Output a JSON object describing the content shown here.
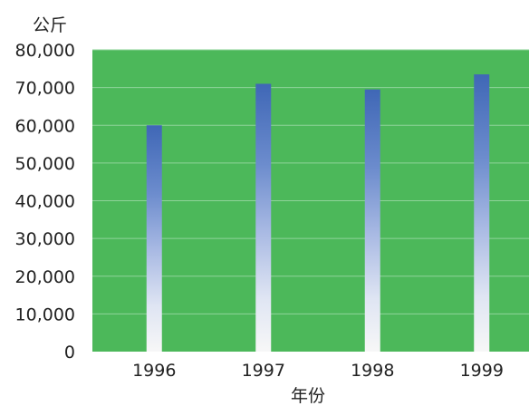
{
  "chart_data": {
    "type": "bar",
    "title": "",
    "xlabel": "年份",
    "ylabel": "公斤",
    "categories": [
      "1996",
      "1997",
      "1998",
      "1999"
    ],
    "values": [
      60000,
      71000,
      69500,
      73500
    ],
    "ylim": [
      0,
      80000
    ],
    "ytick_labels": [
      "0",
      "10,000",
      "20,000",
      "30,000",
      "40,000",
      "50,000",
      "60,000",
      "70,000",
      "80,000"
    ],
    "ytick_values": [
      0,
      10000,
      20000,
      30000,
      40000,
      50000,
      60000,
      70000,
      80000
    ],
    "grid": true,
    "colors": {
      "plot_background": "#4cb85a",
      "gridline": "#8fd39a",
      "bar_top": "#3f67b6",
      "bar_bottom": "#f5f5f5"
    }
  }
}
